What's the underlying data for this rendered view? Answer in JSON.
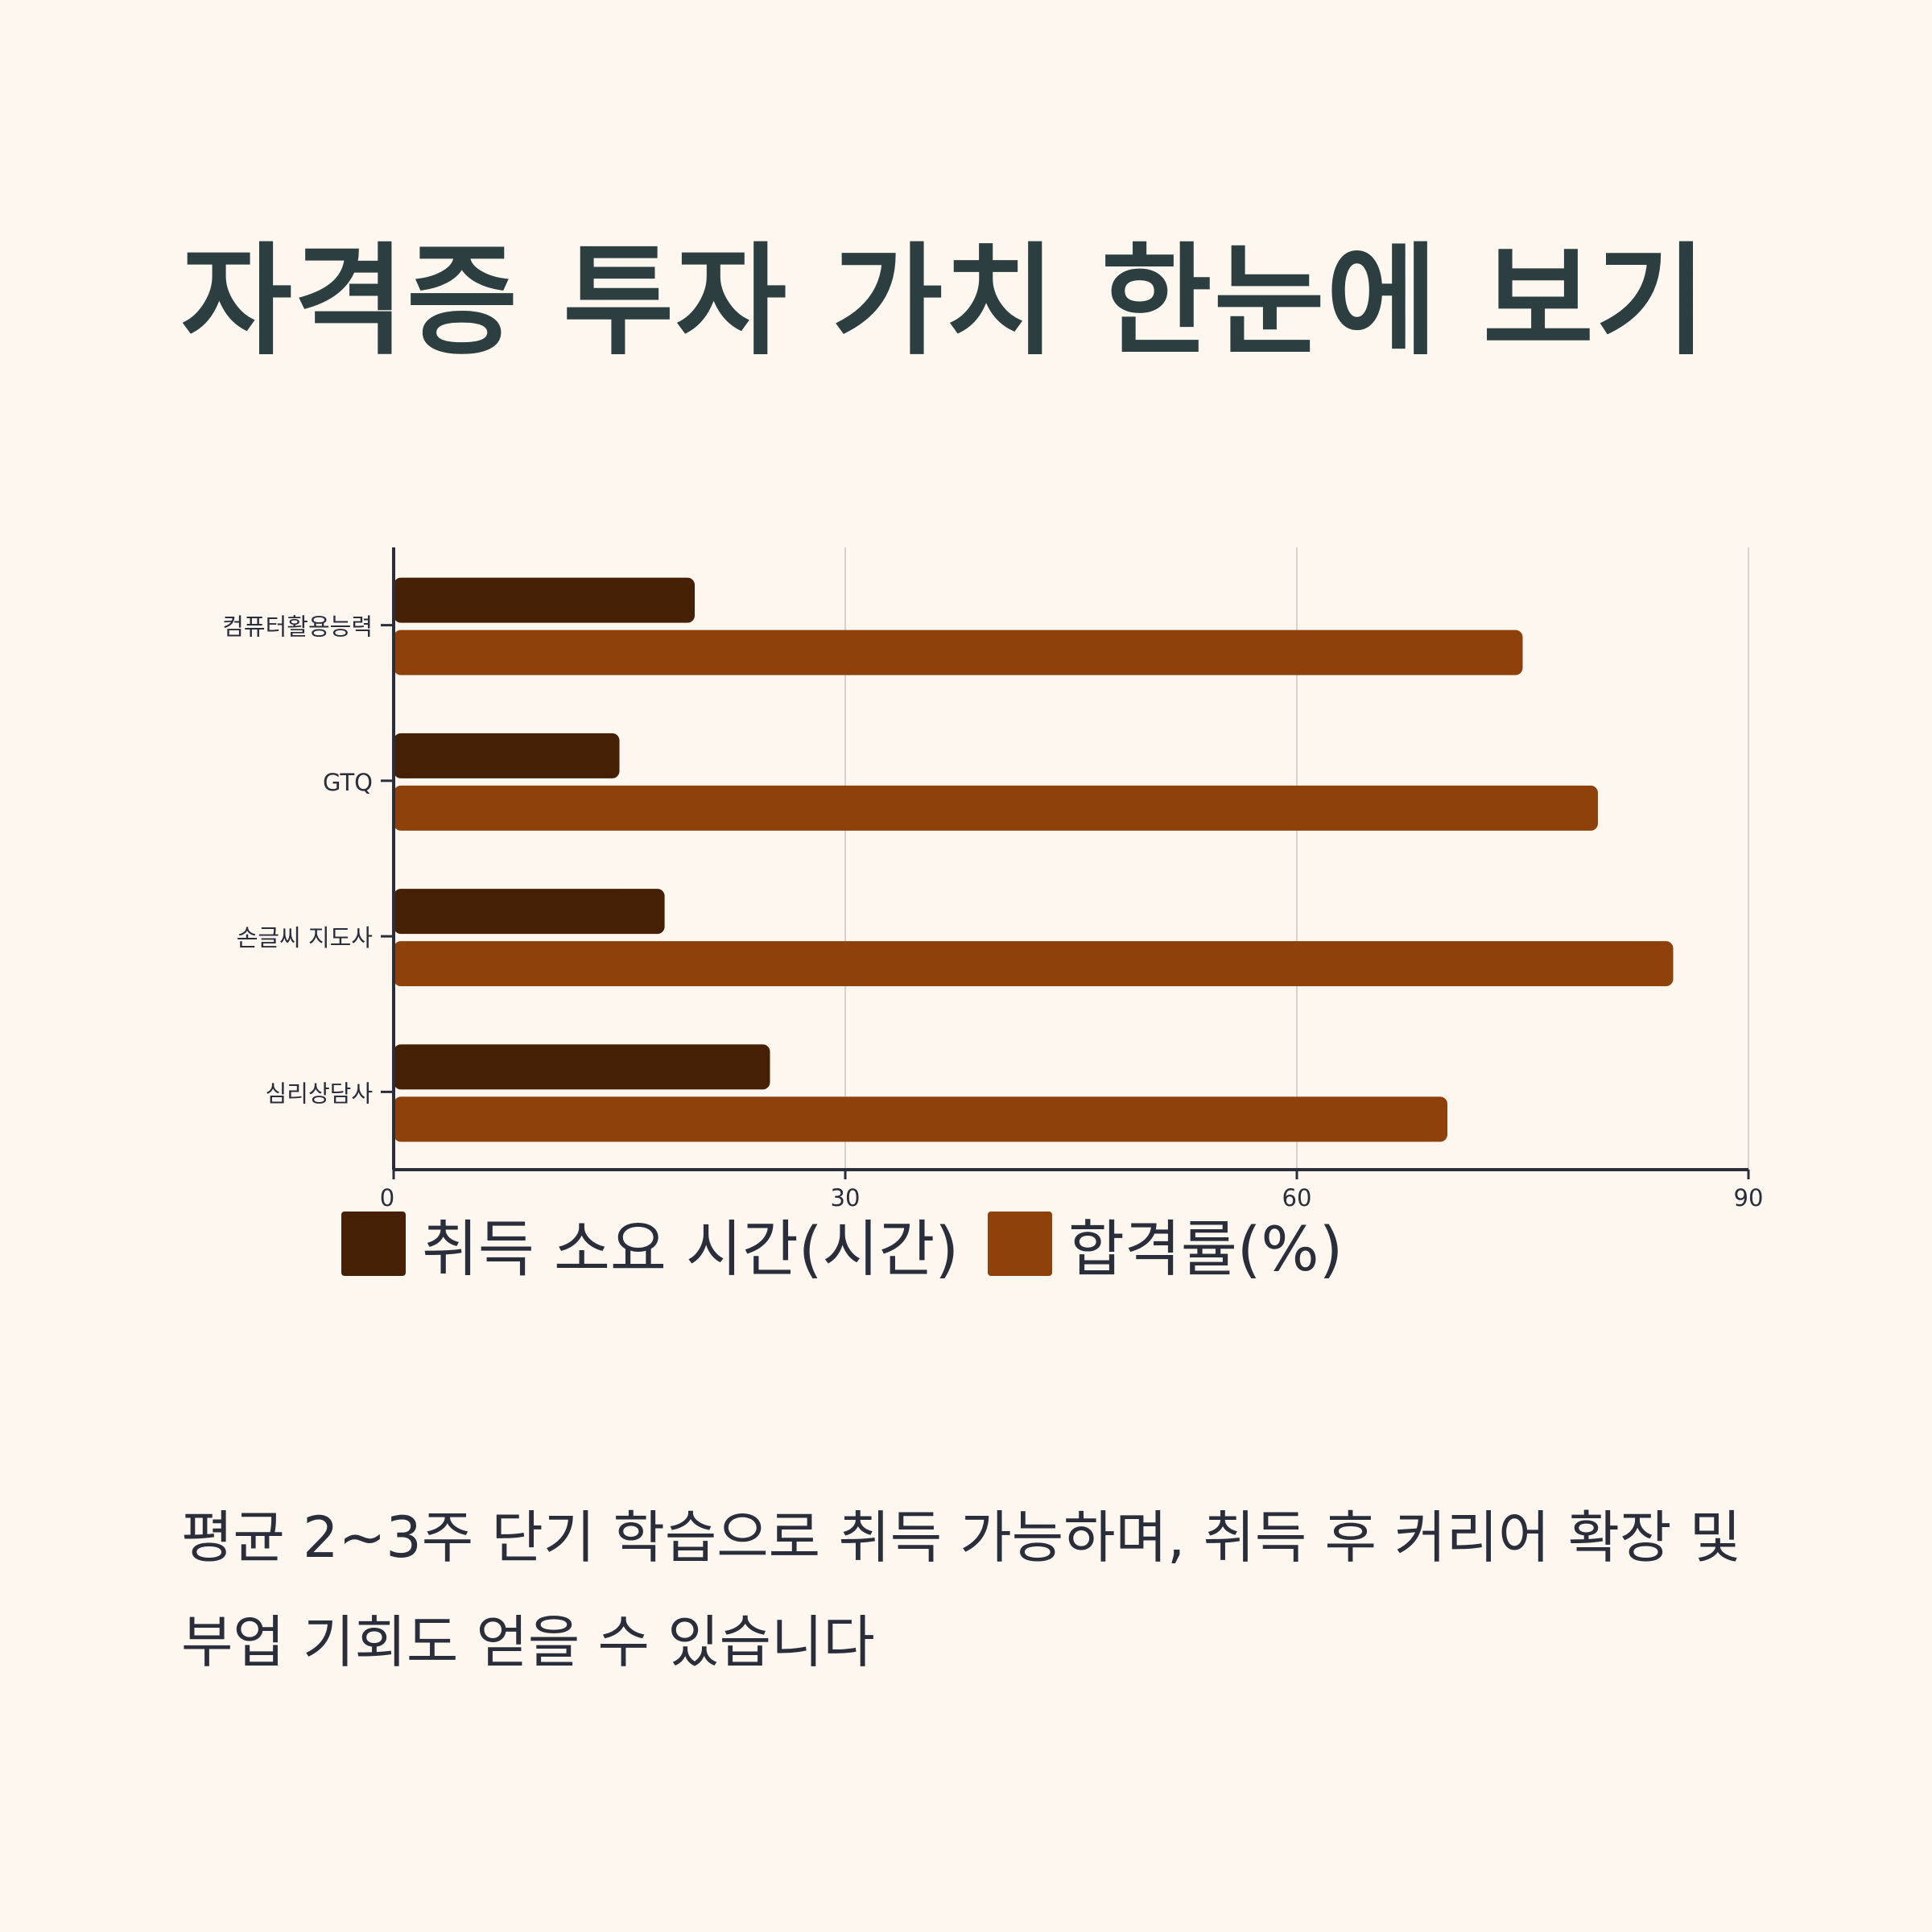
{
  "title": "자격증 투자 가치 한눈에 보기",
  "caption": "평균 2~3주 단기 학습으로 취득 가능하며, 취득 후 커리어 확장 및 부업 기회도 얻을 수 있습니다",
  "colors": {
    "background": "#fdf7f0",
    "title": "#2c3e40",
    "hours": "#452005",
    "pass_rate": "#8f410c",
    "text": "#2a2d3a",
    "grid": "#d6d3cf",
    "axis": "#2a2d3a"
  },
  "chart_data": {
    "type": "bar",
    "orientation": "horizontal",
    "categories": [
      "컴퓨터활용능력",
      "GTQ",
      "손글씨 지도사",
      "심리상담사"
    ],
    "series": [
      {
        "name": "취득 소요 시간(시간)",
        "values": [
          20,
          15,
          18,
          25
        ],
        "color": "#452005"
      },
      {
        "name": "합격률(%)",
        "values": [
          75,
          80,
          85,
          70
        ],
        "color": "#8f410c"
      }
    ],
    "xticks": [
      "0",
      "30",
      "60",
      "90"
    ],
    "xlim": [
      0,
      90
    ],
    "grid": true,
    "legend_position": "bottom"
  }
}
